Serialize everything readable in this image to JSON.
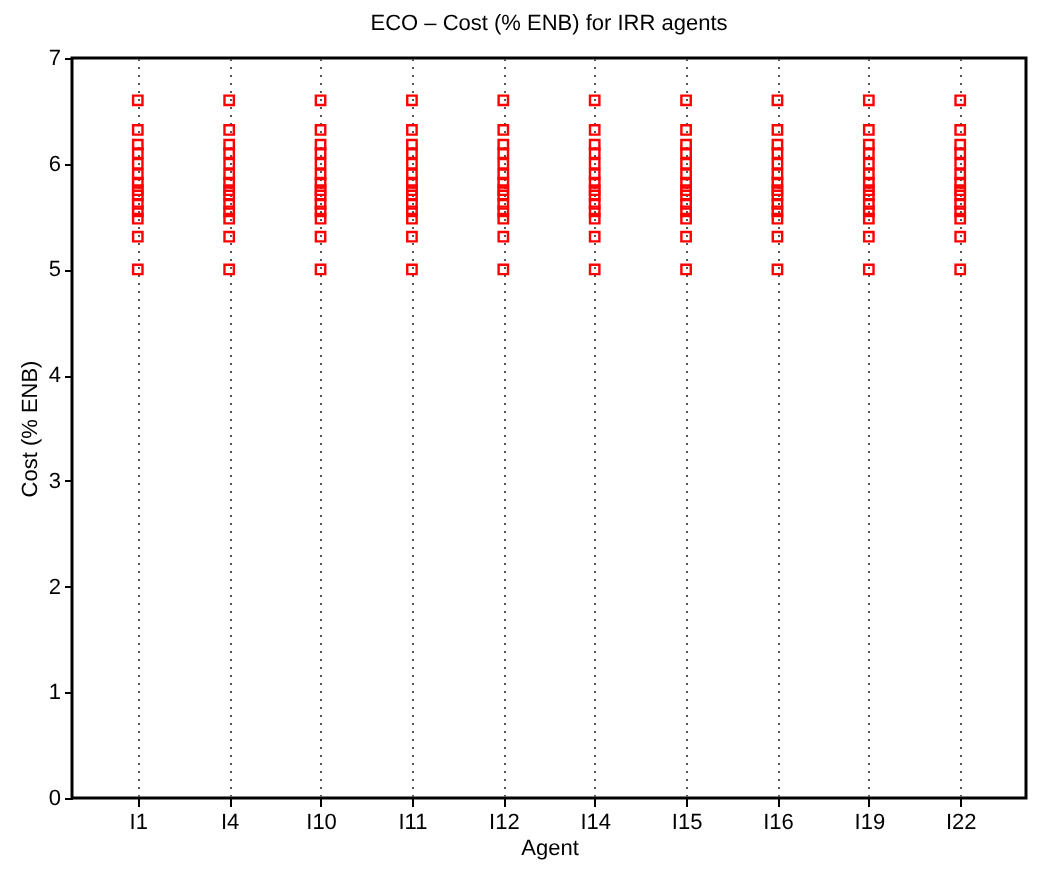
{
  "chart_data": {
    "type": "scatter",
    "title": "ECO – Cost (% ENB) for  IRR agents",
    "xlabel": "Agent",
    "ylabel": "Cost (% ENB)",
    "categories": [
      "I1",
      "I4",
      "I10",
      "I11",
      "I12",
      "I14",
      "I15",
      "I16",
      "I19",
      "I22"
    ],
    "ylim": [
      0,
      7
    ],
    "yticks": [
      0,
      1,
      2,
      3,
      4,
      5,
      6,
      7
    ],
    "grid": "x",
    "marker": "square",
    "series": [
      {
        "color": "#ff0000",
        "x": [
          "I1",
          "I1",
          "I1",
          "I1",
          "I1",
          "I1",
          "I1",
          "I1",
          "I1",
          "I1",
          "I1",
          "I1",
          "I1",
          "I1",
          "I4",
          "I4",
          "I4",
          "I4",
          "I4",
          "I4",
          "I4",
          "I4",
          "I4",
          "I4",
          "I4",
          "I4",
          "I4",
          "I4",
          "I10",
          "I10",
          "I10",
          "I10",
          "I10",
          "I10",
          "I10",
          "I10",
          "I10",
          "I10",
          "I10",
          "I10",
          "I10",
          "I10",
          "I11",
          "I11",
          "I11",
          "I11",
          "I11",
          "I11",
          "I11",
          "I11",
          "I11",
          "I11",
          "I11",
          "I11",
          "I11",
          "I11",
          "I12",
          "I12",
          "I12",
          "I12",
          "I12",
          "I12",
          "I12",
          "I12",
          "I12",
          "I12",
          "I12",
          "I12",
          "I12",
          "I12",
          "I14",
          "I14",
          "I14",
          "I14",
          "I14",
          "I14",
          "I14",
          "I14",
          "I14",
          "I14",
          "I14",
          "I14",
          "I14",
          "I14",
          "I15",
          "I15",
          "I15",
          "I15",
          "I15",
          "I15",
          "I15",
          "I15",
          "I15",
          "I15",
          "I15",
          "I15",
          "I15",
          "I15",
          "I16",
          "I16",
          "I16",
          "I16",
          "I16",
          "I16",
          "I16",
          "I16",
          "I16",
          "I16",
          "I16",
          "I16",
          "I16",
          "I16",
          "I19",
          "I19",
          "I19",
          "I19",
          "I19",
          "I19",
          "I19",
          "I19",
          "I19",
          "I19",
          "I19",
          "I19",
          "I19",
          "I19",
          "I22",
          "I22",
          "I22",
          "I22",
          "I22",
          "I22",
          "I22",
          "I22",
          "I22",
          "I22",
          "I22",
          "I22",
          "I22",
          "I22"
        ],
        "values": [
          6.6,
          6.32,
          6.18,
          6.1,
          6.0,
          5.9,
          5.82,
          5.75,
          5.7,
          5.62,
          5.55,
          5.48,
          5.31,
          5.0,
          6.6,
          6.32,
          6.18,
          6.1,
          6.0,
          5.9,
          5.82,
          5.75,
          5.7,
          5.62,
          5.55,
          5.48,
          5.31,
          5.0,
          6.6,
          6.32,
          6.18,
          6.1,
          6.0,
          5.9,
          5.82,
          5.75,
          5.7,
          5.62,
          5.55,
          5.48,
          5.31,
          5.0,
          6.6,
          6.32,
          6.18,
          6.1,
          6.0,
          5.9,
          5.82,
          5.75,
          5.7,
          5.62,
          5.55,
          5.48,
          5.31,
          5.0,
          6.6,
          6.32,
          6.18,
          6.1,
          6.0,
          5.9,
          5.82,
          5.75,
          5.7,
          5.62,
          5.55,
          5.48,
          5.31,
          5.0,
          6.6,
          6.32,
          6.18,
          6.1,
          6.0,
          5.9,
          5.82,
          5.75,
          5.7,
          5.62,
          5.55,
          5.48,
          5.31,
          5.0,
          6.6,
          6.32,
          6.18,
          6.1,
          6.0,
          5.9,
          5.82,
          5.75,
          5.7,
          5.62,
          5.55,
          5.48,
          5.31,
          5.0,
          6.6,
          6.32,
          6.18,
          6.1,
          6.0,
          5.9,
          5.82,
          5.75,
          5.7,
          5.62,
          5.55,
          5.48,
          5.31,
          5.0,
          6.6,
          6.32,
          6.18,
          6.1,
          6.0,
          5.9,
          5.82,
          5.75,
          5.7,
          5.62,
          5.55,
          5.48,
          5.31,
          5.0,
          6.6,
          6.32,
          6.18,
          6.1,
          6.0,
          5.9,
          5.82,
          5.75,
          5.7,
          5.62,
          5.55,
          5.48,
          5.31,
          5.0
        ]
      }
    ]
  }
}
